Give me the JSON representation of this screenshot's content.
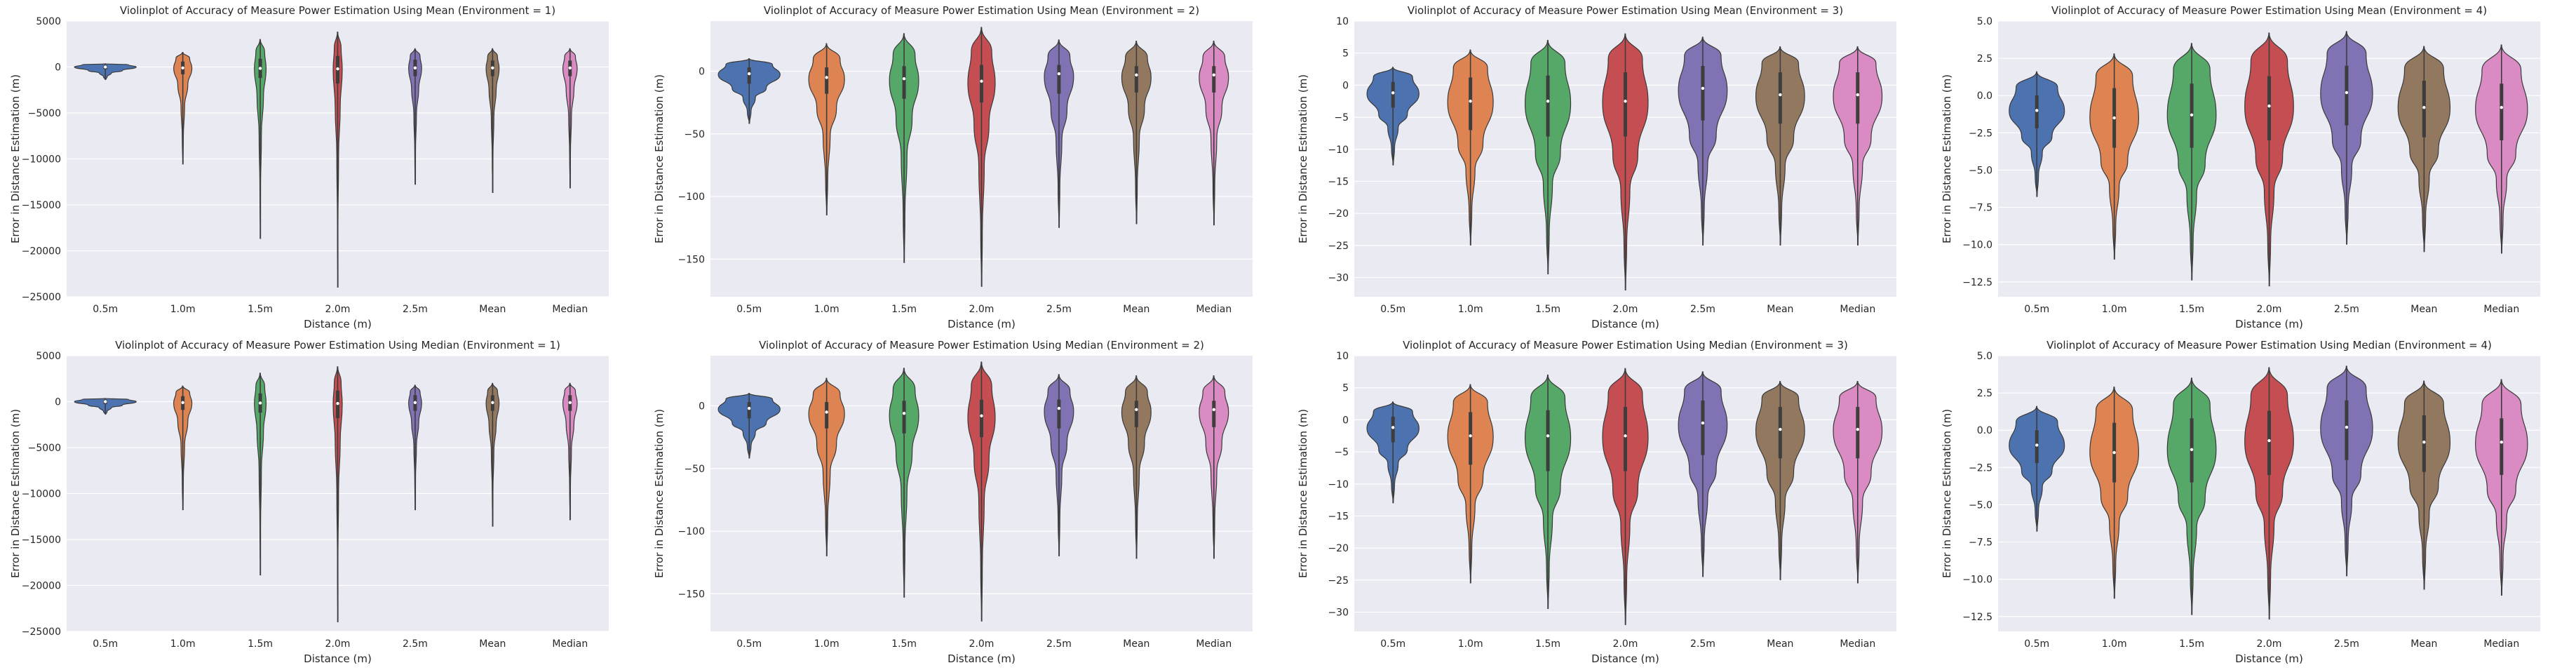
{
  "style": {
    "face_color": "#eaeaf2",
    "grid_color": "#ffffff",
    "edge_color": "#3a3a3a",
    "palette": [
      "#4c72b0",
      "#dd8452",
      "#55a868",
      "#c44e52",
      "#8172b3",
      "#937860",
      "#da8bc3"
    ]
  },
  "chart_data": [
    {
      "type": "violin",
      "title": "Violinplot of Accuracy of Measure Power Estimation Using Mean (Environment = 1)",
      "xlabel": "Distance (m)",
      "ylabel": "Error in Distance Estimation (m)",
      "categories": [
        "0.5m",
        "1.0m",
        "1.5m",
        "2.0m",
        "2.5m",
        "Mean",
        "Median"
      ],
      "ylim": [
        -25000,
        5000
      ],
      "yticks": [
        5000,
        0,
        -5000,
        -10000,
        -15000,
        -20000,
        -25000
      ],
      "ytick_labels": [
        "5000",
        "0",
        "−5000",
        "−10000",
        "−15000",
        "−20000",
        "−25000"
      ],
      "grid": true,
      "violins": [
        {
          "min": -1400,
          "max": 350,
          "q1": -250,
          "median": 0,
          "q3": 200,
          "width": 0.95
        },
        {
          "min": -10600,
          "max": 1600,
          "q1": -800,
          "median": -100,
          "q3": 600,
          "width": 0.28
        },
        {
          "min": -18700,
          "max": 3000,
          "q1": -1200,
          "median": -150,
          "q3": 900,
          "width": 0.18
        },
        {
          "min": -24000,
          "max": 3800,
          "q1": -1800,
          "median": -200,
          "q3": 1200,
          "width": 0.14
        },
        {
          "min": -12800,
          "max": 2000,
          "q1": -1000,
          "median": -100,
          "q3": 800,
          "width": 0.2
        },
        {
          "min": -13700,
          "max": 2000,
          "q1": -1000,
          "median": -100,
          "q3": 700,
          "width": 0.2
        },
        {
          "min": -13200,
          "max": 2000,
          "q1": -1000,
          "median": -100,
          "q3": 700,
          "width": 0.22
        }
      ]
    },
    {
      "type": "violin",
      "title": "Violinplot of Accuracy of Measure Power Estimation Using Mean (Environment = 2)",
      "xlabel": "Distance (m)",
      "ylabel": "Error in Distance Estimation (m)",
      "categories": [
        "0.5m",
        "1.0m",
        "1.5m",
        "2.0m",
        "2.5m",
        "Mean",
        "Median"
      ],
      "ylim": [
        -180,
        40
      ],
      "yticks": [
        0,
        -50,
        -100,
        -150
      ],
      "ytick_labels": [
        "0",
        "−50",
        "−100",
        "−150"
      ],
      "grid": true,
      "violins": [
        {
          "min": -42,
          "max": 10,
          "q1": -10,
          "median": -2,
          "q3": 3,
          "width": 0.95
        },
        {
          "min": -115,
          "max": 22,
          "q1": -18,
          "median": -5,
          "q3": 3,
          "width": 0.55
        },
        {
          "min": -153,
          "max": 30,
          "q1": -22,
          "median": -6,
          "q3": 4,
          "width": 0.45
        },
        {
          "min": -172,
          "max": 35,
          "q1": -25,
          "median": -8,
          "q3": 5,
          "width": 0.42
        },
        {
          "min": -125,
          "max": 25,
          "q1": -18,
          "median": -2,
          "q3": 5,
          "width": 0.45
        },
        {
          "min": -122,
          "max": 24,
          "q1": -17,
          "median": -3,
          "q3": 4,
          "width": 0.45
        },
        {
          "min": -123,
          "max": 24,
          "q1": -17,
          "median": -3,
          "q3": 4,
          "width": 0.45
        }
      ]
    },
    {
      "type": "violin",
      "title": "Violinplot of Accuracy of Measure Power Estimation Using Mean (Environment = 3)",
      "xlabel": "Distance (m)",
      "ylabel": "Error in Distance Estimation (m)",
      "categories": [
        "0.5m",
        "1.0m",
        "1.5m",
        "2.0m",
        "2.5m",
        "Mean",
        "Median"
      ],
      "ylim": [
        -33,
        10
      ],
      "yticks": [
        10,
        5,
        0,
        -5,
        -10,
        -15,
        -20,
        -25,
        -30
      ],
      "ytick_labels": [
        "10",
        "5",
        "0",
        "−5",
        "−10",
        "−15",
        "−20",
        "−25",
        "−30"
      ],
      "grid": true,
      "violins": [
        {
          "min": -12.5,
          "max": 2.8,
          "q1": -3.5,
          "median": -1.2,
          "q3": 0.5,
          "width": 0.8
        },
        {
          "min": -25,
          "max": 5.5,
          "q1": -7,
          "median": -2.5,
          "q3": 1.2,
          "width": 0.7
        },
        {
          "min": -29.5,
          "max": 7,
          "q1": -8,
          "median": -2.5,
          "q3": 1.5,
          "width": 0.7
        },
        {
          "min": -32,
          "max": 8,
          "q1": -8,
          "median": -2.5,
          "q3": 2,
          "width": 0.7
        },
        {
          "min": -25,
          "max": 7.5,
          "q1": -5.5,
          "median": -0.5,
          "q3": 3,
          "width": 0.75
        },
        {
          "min": -25,
          "max": 6,
          "q1": -6,
          "median": -1.5,
          "q3": 2,
          "width": 0.75
        },
        {
          "min": -25,
          "max": 6,
          "q1": -6,
          "median": -1.5,
          "q3": 2,
          "width": 0.75
        }
      ]
    },
    {
      "type": "violin",
      "title": "Violinplot of Accuracy of Measure Power Estimation Using Mean (Environment = 4)",
      "xlabel": "Distance (m)",
      "ylabel": "Error in Distance Estimation (m)",
      "categories": [
        "0.5m",
        "1.0m",
        "1.5m",
        "2.0m",
        "2.5m",
        "Mean",
        "Median"
      ],
      "ylim": [
        -13.5,
        5
      ],
      "yticks": [
        5.0,
        2.5,
        0.0,
        -2.5,
        -5.0,
        -7.5,
        -10.0,
        -12.5
      ],
      "ytick_labels": [
        "5.0",
        "2.5",
        "0.0",
        "−2.5",
        "−5.0",
        "−7.5",
        "−10.0",
        "−12.5"
      ],
      "grid": true,
      "violins": [
        {
          "min": -6.8,
          "max": 1.6,
          "q1": -2.2,
          "median": -1,
          "q3": 0,
          "width": 0.85
        },
        {
          "min": -11,
          "max": 2.8,
          "q1": -3.5,
          "median": -1.5,
          "q3": 0.5,
          "width": 0.75
        },
        {
          "min": -12.4,
          "max": 3.5,
          "q1": -3.5,
          "median": -1.3,
          "q3": 0.8,
          "width": 0.75
        },
        {
          "min": -12.8,
          "max": 4.2,
          "q1": -3,
          "median": -0.7,
          "q3": 1.3,
          "width": 0.75
        },
        {
          "min": -10,
          "max": 4.3,
          "q1": -2,
          "median": 0.2,
          "q3": 2,
          "width": 0.8
        },
        {
          "min": -10.5,
          "max": 3.3,
          "q1": -2.8,
          "median": -0.8,
          "q3": 1,
          "width": 0.8
        },
        {
          "min": -10.6,
          "max": 3.4,
          "q1": -3,
          "median": -0.8,
          "q3": 0.8,
          "width": 0.8
        }
      ]
    },
    {
      "type": "violin",
      "title": "Violinplot of Accuracy of Measure Power Estimation Using Median (Environment = 1)",
      "xlabel": "Distance (m)",
      "ylabel": "Error in Distance Estimation (m)",
      "categories": [
        "0.5m",
        "1.0m",
        "1.5m",
        "2.0m",
        "2.5m",
        "Mean",
        "Median"
      ],
      "ylim": [
        -25000,
        5000
      ],
      "yticks": [
        5000,
        0,
        -5000,
        -10000,
        -15000,
        -20000,
        -25000
      ],
      "ytick_labels": [
        "5000",
        "0",
        "−5000",
        "−10000",
        "−15000",
        "−20000",
        "−25000"
      ],
      "grid": true,
      "violins": [
        {
          "min": -1400,
          "max": 350,
          "q1": -250,
          "median": 0,
          "q3": 200,
          "width": 0.95
        },
        {
          "min": -11800,
          "max": 1700,
          "q1": -900,
          "median": -100,
          "q3": 600,
          "width": 0.28
        },
        {
          "min": -18900,
          "max": 3100,
          "q1": -1200,
          "median": -150,
          "q3": 900,
          "width": 0.18
        },
        {
          "min": -24000,
          "max": 3800,
          "q1": -1800,
          "median": -200,
          "q3": 1200,
          "width": 0.14
        },
        {
          "min": -11800,
          "max": 1800,
          "q1": -1000,
          "median": -100,
          "q3": 700,
          "width": 0.2
        },
        {
          "min": -13600,
          "max": 2000,
          "q1": -1000,
          "median": -100,
          "q3": 700,
          "width": 0.2
        },
        {
          "min": -12900,
          "max": 2000,
          "q1": -1000,
          "median": -100,
          "q3": 700,
          "width": 0.22
        }
      ]
    },
    {
      "type": "violin",
      "title": "Violinplot of Accuracy of Measure Power Estimation Using Median (Environment = 2)",
      "xlabel": "Distance (m)",
      "ylabel": "Error in Distance Estimation (m)",
      "categories": [
        "0.5m",
        "1.0m",
        "1.5m",
        "2.0m",
        "2.5m",
        "Mean",
        "Median"
      ],
      "ylim": [
        -180,
        40
      ],
      "yticks": [
        0,
        -50,
        -100,
        -150
      ],
      "ytick_labels": [
        "0",
        "−50",
        "−100",
        "−150"
      ],
      "grid": true,
      "violins": [
        {
          "min": -42,
          "max": 10,
          "q1": -10,
          "median": -2,
          "q3": 3,
          "width": 0.95
        },
        {
          "min": -120,
          "max": 22,
          "q1": -18,
          "median": -5,
          "q3": 3,
          "width": 0.55
        },
        {
          "min": -153,
          "max": 30,
          "q1": -22,
          "median": -6,
          "q3": 4,
          "width": 0.45
        },
        {
          "min": -172,
          "max": 35,
          "q1": -25,
          "median": -8,
          "q3": 5,
          "width": 0.42
        },
        {
          "min": -120,
          "max": 25,
          "q1": -18,
          "median": -2,
          "q3": 5,
          "width": 0.45
        },
        {
          "min": -122,
          "max": 24,
          "q1": -17,
          "median": -3,
          "q3": 4,
          "width": 0.45
        },
        {
          "min": -122,
          "max": 24,
          "q1": -17,
          "median": -3,
          "q3": 4,
          "width": 0.45
        }
      ]
    },
    {
      "type": "violin",
      "title": "Violinplot of Accuracy of Measure Power Estimation Using Median (Environment = 3)",
      "xlabel": "Distance (m)",
      "ylabel": "Error in Distance Estimation (m)",
      "categories": [
        "0.5m",
        "1.0m",
        "1.5m",
        "2.0m",
        "2.5m",
        "Mean",
        "Median"
      ],
      "ylim": [
        -33,
        10
      ],
      "yticks": [
        10,
        5,
        0,
        -5,
        -10,
        -15,
        -20,
        -25,
        -30
      ],
      "ytick_labels": [
        "10",
        "5",
        "0",
        "−5",
        "−10",
        "−15",
        "−20",
        "−25",
        "−30"
      ],
      "grid": true,
      "violins": [
        {
          "min": -13,
          "max": 2.8,
          "q1": -3.5,
          "median": -1.2,
          "q3": 0.5,
          "width": 0.8
        },
        {
          "min": -25.5,
          "max": 5.5,
          "q1": -7,
          "median": -2.5,
          "q3": 1.2,
          "width": 0.7
        },
        {
          "min": -29.5,
          "max": 7,
          "q1": -8,
          "median": -2.5,
          "q3": 1.5,
          "width": 0.7
        },
        {
          "min": -32,
          "max": 8,
          "q1": -8,
          "median": -2.5,
          "q3": 2,
          "width": 0.7
        },
        {
          "min": -24.5,
          "max": 7.5,
          "q1": -5.5,
          "median": -0.5,
          "q3": 3,
          "width": 0.75
        },
        {
          "min": -25,
          "max": 6,
          "q1": -6,
          "median": -1.5,
          "q3": 2,
          "width": 0.75
        },
        {
          "min": -25.5,
          "max": 6,
          "q1": -6,
          "median": -1.5,
          "q3": 2,
          "width": 0.75
        }
      ]
    },
    {
      "type": "violin",
      "title": "Violinplot of Accuracy of Measure Power Estimation Using Median (Environment = 4)",
      "xlabel": "Distance (m)",
      "ylabel": "Error in Distance Estimation (m)",
      "categories": [
        "0.5m",
        "1.0m",
        "1.5m",
        "2.0m",
        "2.5m",
        "Mean",
        "Median"
      ],
      "ylim": [
        -13.5,
        5
      ],
      "yticks": [
        5.0,
        2.5,
        0.0,
        -2.5,
        -5.0,
        -7.5,
        -10.0,
        -12.5
      ],
      "ytick_labels": [
        "5.0",
        "2.5",
        "0.0",
        "−2.5",
        "−5.0",
        "−7.5",
        "−10.0",
        "−12.5"
      ],
      "grid": true,
      "violins": [
        {
          "min": -6.8,
          "max": 1.6,
          "q1": -2.2,
          "median": -1,
          "q3": 0,
          "width": 0.85
        },
        {
          "min": -11.3,
          "max": 2.9,
          "q1": -3.5,
          "median": -1.5,
          "q3": 0.5,
          "width": 0.75
        },
        {
          "min": -12.4,
          "max": 3.5,
          "q1": -3.5,
          "median": -1.3,
          "q3": 0.8,
          "width": 0.75
        },
        {
          "min": -12.7,
          "max": 4.2,
          "q1": -3,
          "median": -0.7,
          "q3": 1.3,
          "width": 0.75
        },
        {
          "min": -9.8,
          "max": 4.3,
          "q1": -2,
          "median": 0.2,
          "q3": 2,
          "width": 0.8
        },
        {
          "min": -10.7,
          "max": 3.3,
          "q1": -2.8,
          "median": -0.8,
          "q3": 1,
          "width": 0.8
        },
        {
          "min": -11.1,
          "max": 3.4,
          "q1": -3,
          "median": -0.8,
          "q3": 0.8,
          "width": 0.8
        }
      ]
    }
  ]
}
